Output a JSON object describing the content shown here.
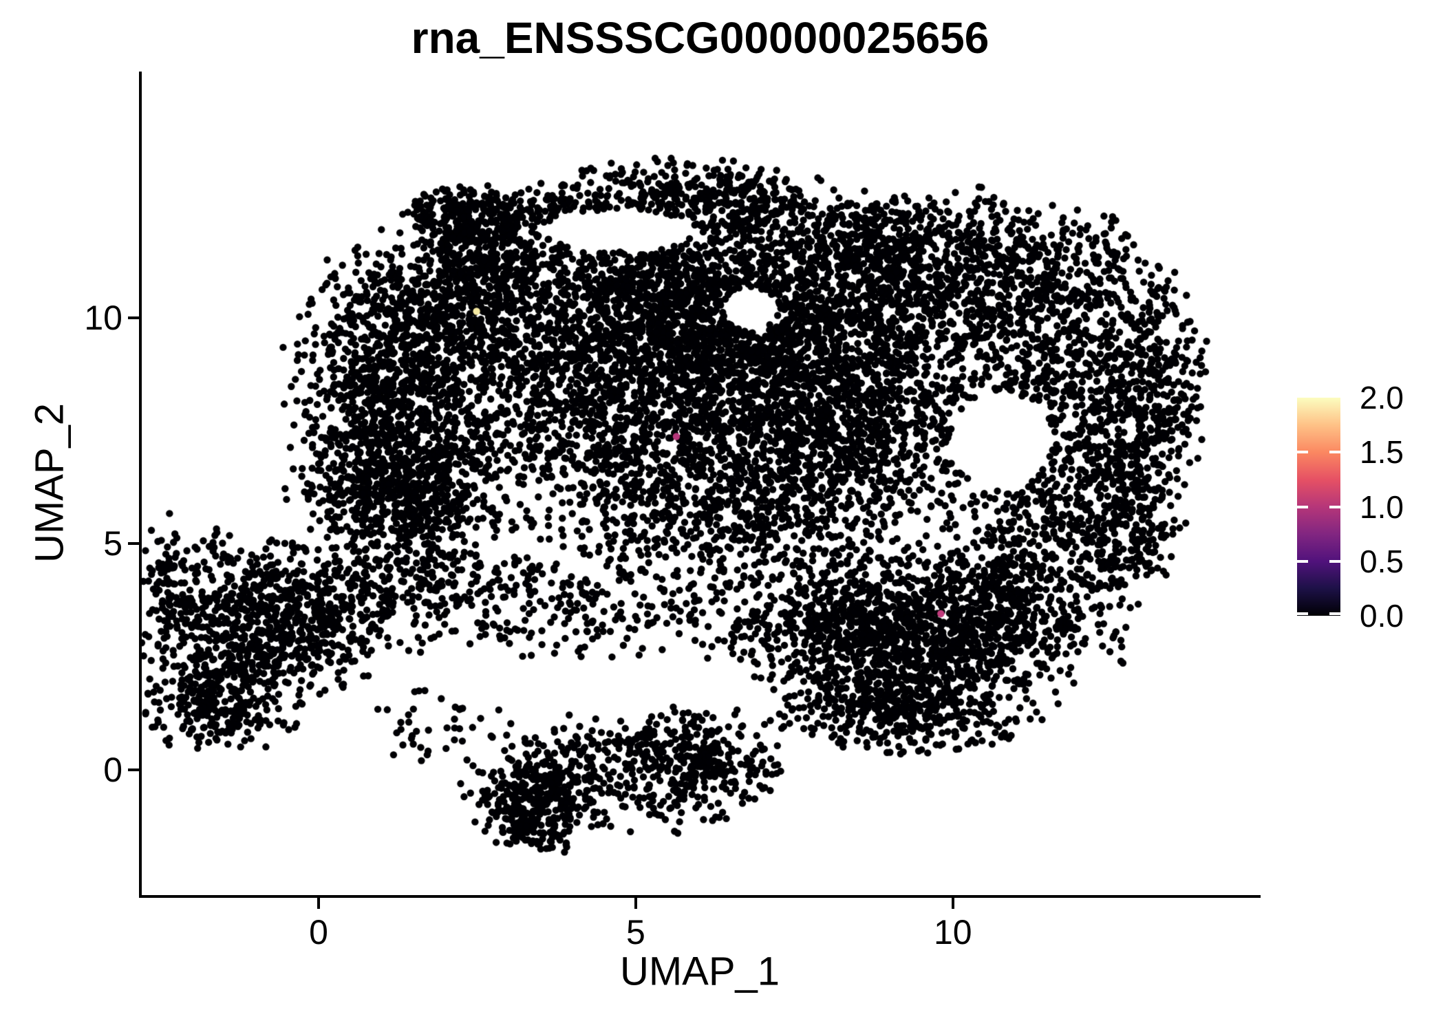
{
  "title": "rna_ENSSSCG00000025656",
  "axes": {
    "x_label": "UMAP_1",
    "y_label": "UMAP_2",
    "x_tick_labels": [
      "0",
      "5",
      "10"
    ],
    "y_tick_labels": [
      "0",
      "5",
      "10"
    ]
  },
  "legend": {
    "tick_labels": [
      "2.0",
      "1.5",
      "1.0",
      "0.5",
      "0.0"
    ],
    "tick_values": [
      2.0,
      1.5,
      1.0,
      0.5,
      0.0
    ],
    "gradient_stops": [
      "#000004",
      "#1D1147",
      "#51127C",
      "#822681",
      "#B63679",
      "#E65164",
      "#FB8861",
      "#FEC287",
      "#FCFDBF"
    ]
  },
  "chart_data": {
    "type": "scatter",
    "title": "rna_ENSSSCG00000025656",
    "xlabel": "UMAP_1",
    "ylabel": "UMAP_2",
    "xlim": [
      -2.8,
      14.83
    ],
    "ylim": [
      -2.79,
      15.43
    ],
    "xticks": [
      0,
      5,
      10
    ],
    "yticks": [
      0,
      5,
      10
    ],
    "grid": false,
    "legend_position": "right",
    "colorbar": {
      "min": 0.0,
      "max": 2.0,
      "tick_values": [
        0.0,
        0.5,
        1.0,
        1.5,
        2.0
      ],
      "inner_tick_values": [
        0.0,
        0.5,
        1.0,
        1.5
      ],
      "palette": "magma",
      "palette_stops": [
        "#000004",
        "#1D1147",
        "#51127C",
        "#822681",
        "#B63679",
        "#E65164",
        "#FB8861",
        "#FEC287",
        "#FCFDBF"
      ]
    },
    "point_radius_px": 5.2,
    "base_color": "#000004",
    "seed": 1337,
    "clusters": [
      {
        "x": 2.08,
        "y": 12.08,
        "sx": 0.41,
        "sy": 0.38,
        "n": 130
      },
      {
        "x": 3.22,
        "y": 12.31,
        "sx": 0.87,
        "sy": 0.33,
        "n": 230
      },
      {
        "x": 5.72,
        "y": 12.72,
        "sx": 0.98,
        "sy": 0.4,
        "n": 260
      },
      {
        "x": 6.75,
        "y": 12.47,
        "sx": 0.43,
        "sy": 0.38,
        "n": 90
      },
      {
        "x": 2.62,
        "y": 11.1,
        "sx": 0.49,
        "sy": 0.68,
        "n": 220
      },
      {
        "x": 1.7,
        "y": 10.18,
        "sx": 0.87,
        "sy": 0.91,
        "n": 450
      },
      {
        "x": 1.21,
        "y": 8.05,
        "sx": 0.81,
        "sy": 1.29,
        "n": 800
      },
      {
        "x": 1.05,
        "y": 6.38,
        "sx": 0.76,
        "sy": 0.68,
        "n": 350
      },
      {
        "x": 4.74,
        "y": 10.94,
        "sx": 1.19,
        "sy": 0.84,
        "n": 500
      },
      {
        "x": 8.64,
        "y": 11.78,
        "sx": 0.98,
        "sy": 0.53,
        "n": 300
      },
      {
        "x": 4.2,
        "y": 8.97,
        "sx": 1.3,
        "sy": 1.14,
        "n": 900
      },
      {
        "x": 6.04,
        "y": 9.88,
        "sx": 0.98,
        "sy": 1.07,
        "n": 600
      },
      {
        "x": 8.1,
        "y": 9.57,
        "sx": 1.3,
        "sy": 1.37,
        "n": 1300
      },
      {
        "x": 7.99,
        "y": 7.14,
        "sx": 1.3,
        "sy": 0.91,
        "n": 600
      },
      {
        "x": 10.49,
        "y": 11.1,
        "sx": 1.19,
        "sy": 0.84,
        "n": 500
      },
      {
        "x": 11.9,
        "y": 9.12,
        "sx": 0.98,
        "sy": 1.37,
        "n": 600
      },
      {
        "x": 13.2,
        "y": 8.05,
        "sx": 0.38,
        "sy": 1.37,
        "n": 250
      },
      {
        "x": 11.57,
        "y": 5.46,
        "sx": 0.98,
        "sy": 0.91,
        "n": 400
      },
      {
        "x": 5.28,
        "y": 6.53,
        "sx": 1.95,
        "sy": 0.84,
        "n": 600
      },
      {
        "x": 6.69,
        "y": 5.31,
        "sx": 1.3,
        "sy": 0.61,
        "n": 300
      },
      {
        "x": 1.49,
        "y": 5.46,
        "sx": 0.65,
        "sy": 0.61,
        "n": 200
      },
      {
        "x": 6.37,
        "y": 9.12,
        "sx": 3.2,
        "sy": 1.9,
        "n": 900
      },
      {
        "x": -1.33,
        "y": 2.88,
        "sx": 0.71,
        "sy": 1.14,
        "n": 650
      },
      {
        "x": -0.03,
        "y": 3.49,
        "sx": 0.6,
        "sy": 0.84,
        "n": 280
      },
      {
        "x": -2.47,
        "y": 4.4,
        "sx": 0.2,
        "sy": 0.61,
        "n": 60
      },
      {
        "x": -1.77,
        "y": 1.35,
        "sx": 0.49,
        "sy": 0.46,
        "n": 120
      },
      {
        "x": 3.66,
        "y": 3.64,
        "sx": 2.49,
        "sy": 0.61,
        "n": 380
      },
      {
        "x": 1.7,
        "y": 4.25,
        "sx": 0.87,
        "sy": 0.46,
        "n": 120
      },
      {
        "x": 8.32,
        "y": 3.49,
        "sx": 1.19,
        "sy": 0.68,
        "n": 350
      },
      {
        "x": 9.4,
        "y": 2.57,
        "sx": 1.19,
        "sy": 1.07,
        "n": 1100
      },
      {
        "x": 10.92,
        "y": 3.64,
        "sx": 0.65,
        "sy": 0.76,
        "n": 250
      },
      {
        "x": 9.08,
        "y": 1.35,
        "sx": 0.98,
        "sy": 0.46,
        "n": 200
      },
      {
        "x": 4.74,
        "y": -0.17,
        "sx": 1.19,
        "sy": 0.61,
        "n": 330
      },
      {
        "x": 3.38,
        "y": -0.85,
        "sx": 0.43,
        "sy": 0.55,
        "n": 300
      },
      {
        "x": 6.04,
        "y": 0.29,
        "sx": 0.6,
        "sy": 0.53,
        "n": 160
      },
      {
        "x": 5.28,
        "y": 0.59,
        "sx": 0.98,
        "sy": 0.38,
        "n": 80
      },
      {
        "x": 12.33,
        "y": 6.68,
        "sx": 0.65,
        "sy": 0.91,
        "n": 180
      },
      {
        "x": 12.77,
        "y": 5.16,
        "sx": 0.38,
        "sy": 0.76,
        "n": 100
      },
      {
        "x": 1.92,
        "y": 0.9,
        "sx": 0.54,
        "sy": 0.46,
        "n": 40
      },
      {
        "x": 12.11,
        "y": 3.33,
        "sx": 0.43,
        "sy": 0.61,
        "n": 60
      }
    ],
    "holes": [
      {
        "x": 10.76,
        "y": 7.29,
        "rx": 0.81,
        "ry": 1.07
      },
      {
        "x": 4.74,
        "y": 11.93,
        "rx": 1.19,
        "ry": 0.46
      },
      {
        "x": 6.8,
        "y": 10.18,
        "rx": 0.43,
        "ry": 0.46
      }
    ],
    "highlight_points": [
      {
        "x": 2.49,
        "y": 10.14,
        "value": 2.0,
        "color": "#F5E9A3"
      },
      {
        "x": 5.64,
        "y": 7.37,
        "value": 1.0,
        "color": "#B53679"
      },
      {
        "x": 9.81,
        "y": 3.45,
        "value": 1.1,
        "color": "#C13C7D"
      }
    ]
  }
}
